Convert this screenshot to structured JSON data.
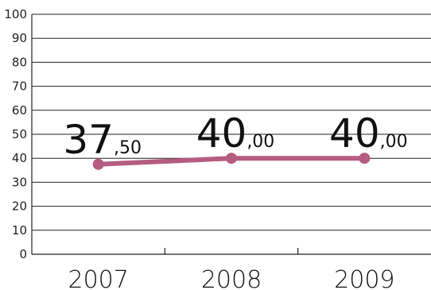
{
  "chart_data": {
    "type": "line",
    "categories": [
      "2007",
      "2008",
      "2009"
    ],
    "series": [
      {
        "values": [
          37.5,
          40.0,
          40.0
        ],
        "color": "#b55c80",
        "data_labels": [
          {
            "int": "37",
            "dec": ",50"
          },
          {
            "int": "40",
            "dec": ",00"
          },
          {
            "int": "40",
            "dec": ",00"
          }
        ]
      }
    ],
    "y_ticks": [
      "0",
      "10",
      "20",
      "30",
      "40",
      "50",
      "60",
      "70",
      "80",
      "90",
      "100"
    ],
    "ylim": [
      0,
      100
    ],
    "grid": true,
    "title": "",
    "xlabel": "",
    "ylabel": ""
  }
}
